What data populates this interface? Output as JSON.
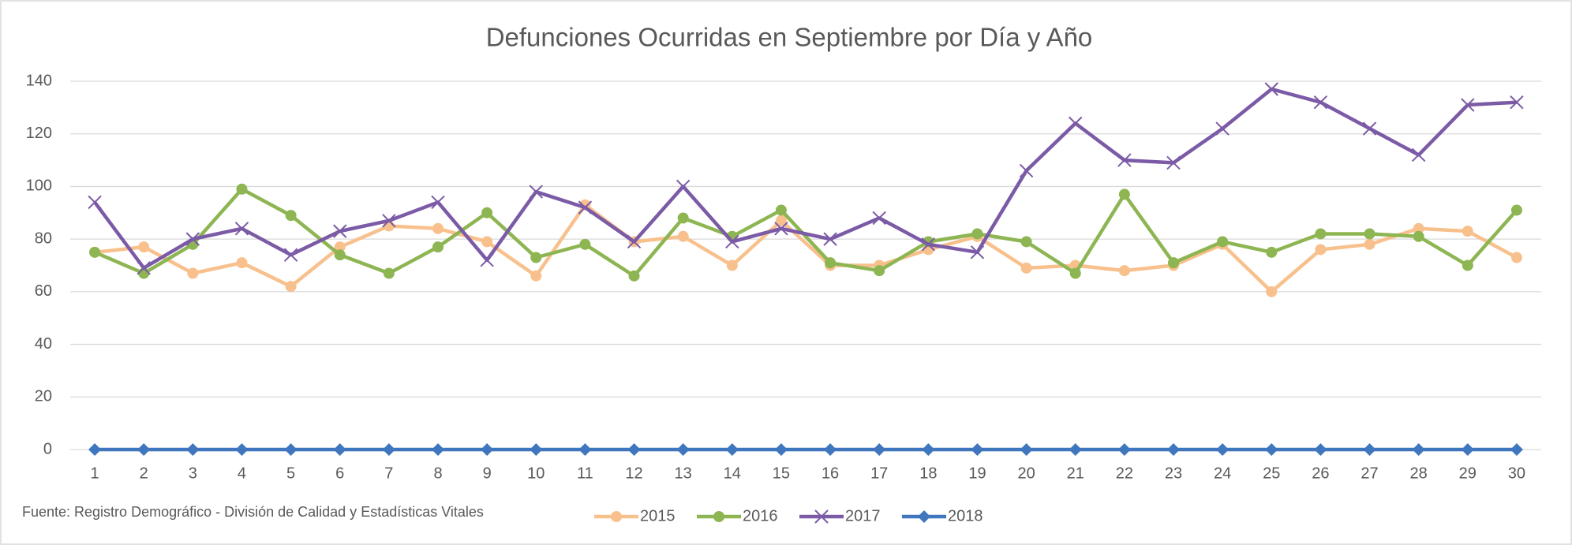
{
  "chart_data": {
    "type": "line",
    "title": "Defunciones Ocurridas en Septiembre por Día y Año",
    "source": "Fuente: Registro Demográfico - División de Calidad y Estadísticas Vitales",
    "categories": [
      "1",
      "2",
      "3",
      "4",
      "5",
      "6",
      "7",
      "8",
      "9",
      "10",
      "11",
      "12",
      "13",
      "14",
      "15",
      "16",
      "17",
      "18",
      "19",
      "20",
      "21",
      "22",
      "23",
      "24",
      "25",
      "26",
      "27",
      "28",
      "29",
      "30"
    ],
    "series": [
      {
        "name": "2015",
        "color": "#f8c08c",
        "marker": "circle",
        "values": [
          75,
          77,
          67,
          71,
          62,
          77,
          85,
          84,
          79,
          66,
          93,
          79,
          81,
          70,
          87,
          70,
          70,
          76,
          81,
          69,
          70,
          68,
          70,
          78,
          60,
          76,
          78,
          84,
          83,
          73
        ]
      },
      {
        "name": "2016",
        "color": "#8db552",
        "marker": "circle",
        "values": [
          75,
          67,
          78,
          99,
          89,
          74,
          67,
          77,
          90,
          73,
          78,
          66,
          88,
          81,
          91,
          71,
          68,
          79,
          82,
          79,
          67,
          97,
          71,
          79,
          75,
          82,
          82,
          81,
          70,
          91
        ]
      },
      {
        "name": "2017",
        "color": "#7b5aa6",
        "marker": "x",
        "values": [
          94,
          69,
          80,
          84,
          74,
          83,
          87,
          94,
          72,
          98,
          92,
          79,
          100,
          79,
          84,
          80,
          88,
          78,
          75,
          106,
          124,
          110,
          109,
          122,
          137,
          132,
          122,
          112,
          131,
          132
        ]
      },
      {
        "name": "2018",
        "color": "#3f76be",
        "marker": "diamond",
        "values": [
          0,
          0,
          0,
          0,
          0,
          0,
          0,
          0,
          0,
          0,
          0,
          0,
          0,
          0,
          0,
          0,
          0,
          0,
          0,
          0,
          0,
          0,
          0,
          0,
          0,
          0,
          0,
          0,
          0,
          0
        ]
      }
    ],
    "ylim": [
      0,
      140
    ],
    "yticks": [
      0,
      20,
      40,
      60,
      80,
      100,
      120,
      140
    ],
    "grid": true,
    "legend": "bottom"
  }
}
